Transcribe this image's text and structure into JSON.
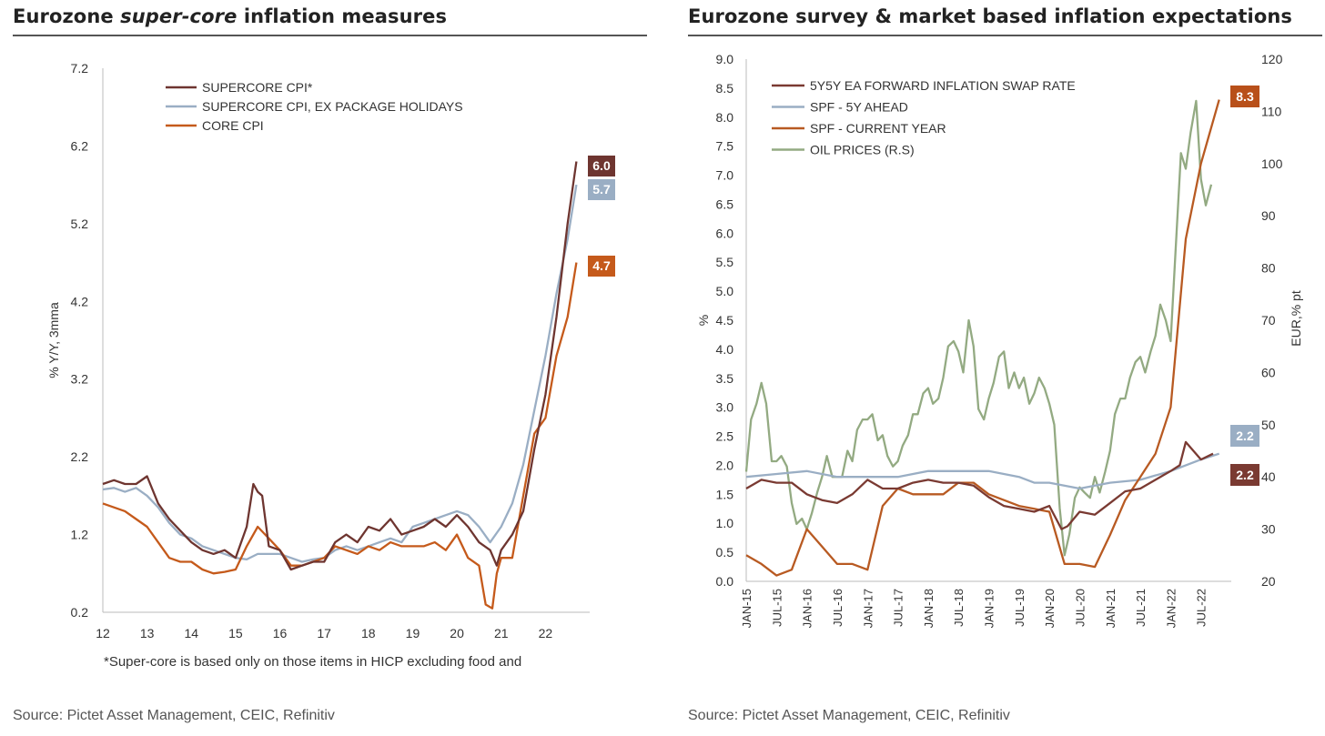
{
  "left": {
    "title_before": "Eurozone ",
    "title_italic": "super-core",
    "title_after": " inflation measures",
    "footnote": "*Super-core is based only on those items in HICP excluding food and",
    "source": "Source: Pictet Asset Management, CEIC, Refinitiv"
  },
  "right": {
    "title": "Eurozone survey & market based inflation expectations",
    "source": "Source: Pictet Asset Management, CEIC, Refinitiv"
  },
  "colors": {
    "supercore": "#6e3530",
    "supercore_ex": "#9aaec4",
    "core": "#c55a1b",
    "swap": "#7a3a32",
    "spf5y": "#9aaec4",
    "spf_cy": "#b85a22",
    "oil": "#93aa82"
  },
  "chart_data": [
    {
      "type": "line",
      "title": "Eurozone super-core inflation measures",
      "ylabel": "% Y/Y, 3mma",
      "ylim": [
        0.2,
        7.2
      ],
      "yticks": [
        "0.2",
        "1.2",
        "2.2",
        "3.2",
        "4.2",
        "5.2",
        "6.2",
        "7.2"
      ],
      "xlim": [
        2012.0,
        2023.0
      ],
      "xticks": [
        "12",
        "13",
        "14",
        "15",
        "16",
        "17",
        "18",
        "19",
        "20",
        "21",
        "22"
      ],
      "legend_position": "top-left",
      "series": [
        {
          "name": "SUPERCORE CPI*",
          "end_label": "6.0",
          "x": [
            2012.0,
            2012.25,
            2012.5,
            2012.75,
            2013.0,
            2013.25,
            2013.5,
            2013.75,
            2014.0,
            2014.25,
            2014.5,
            2014.75,
            2015.0,
            2015.25,
            2015.4,
            2015.5,
            2015.6,
            2015.75,
            2016.0,
            2016.25,
            2016.5,
            2016.75,
            2017.0,
            2017.25,
            2017.5,
            2017.75,
            2018.0,
            2018.25,
            2018.5,
            2018.75,
            2019.0,
            2019.25,
            2019.5,
            2019.75,
            2020.0,
            2020.25,
            2020.5,
            2020.75,
            2020.9,
            2021.0,
            2021.25,
            2021.5,
            2021.75,
            2022.0,
            2022.25,
            2022.5,
            2022.7
          ],
          "values": [
            1.85,
            1.9,
            1.85,
            1.85,
            1.95,
            1.6,
            1.4,
            1.25,
            1.1,
            1.0,
            0.95,
            1.0,
            0.9,
            1.3,
            1.85,
            1.75,
            1.7,
            1.05,
            1.0,
            0.75,
            0.8,
            0.85,
            0.85,
            1.1,
            1.2,
            1.1,
            1.3,
            1.25,
            1.4,
            1.2,
            1.25,
            1.3,
            1.4,
            1.3,
            1.45,
            1.3,
            1.1,
            1.0,
            0.8,
            1.0,
            1.2,
            1.5,
            2.3,
            3.0,
            4.0,
            5.2,
            6.0
          ]
        },
        {
          "name": "SUPERCORE CPI, EX PACKAGE HOLIDAYS",
          "end_label": "5.7",
          "x": [
            2012.0,
            2012.25,
            2012.5,
            2012.75,
            2013.0,
            2013.25,
            2013.5,
            2013.75,
            2014.0,
            2014.25,
            2014.5,
            2014.75,
            2015.0,
            2015.25,
            2015.5,
            2015.75,
            2016.0,
            2016.25,
            2016.5,
            2016.75,
            2017.0,
            2017.25,
            2017.5,
            2017.75,
            2018.0,
            2018.25,
            2018.5,
            2018.75,
            2019.0,
            2019.25,
            2019.5,
            2019.75,
            2020.0,
            2020.25,
            2020.5,
            2020.75,
            2021.0,
            2021.25,
            2021.5,
            2021.75,
            2022.0,
            2022.25,
            2022.5,
            2022.7
          ],
          "values": [
            1.78,
            1.8,
            1.75,
            1.8,
            1.7,
            1.55,
            1.35,
            1.2,
            1.15,
            1.05,
            1.0,
            0.95,
            0.9,
            0.88,
            0.95,
            0.95,
            0.95,
            0.9,
            0.85,
            0.88,
            0.9,
            1.0,
            1.05,
            1.0,
            1.05,
            1.1,
            1.15,
            1.1,
            1.3,
            1.35,
            1.4,
            1.45,
            1.5,
            1.45,
            1.3,
            1.1,
            1.3,
            1.6,
            2.1,
            2.8,
            3.5,
            4.3,
            5.0,
            5.7
          ]
        },
        {
          "name": "CORE CPI",
          "end_label": "4.7",
          "x": [
            2012.0,
            2012.25,
            2012.5,
            2012.75,
            2013.0,
            2013.25,
            2013.5,
            2013.75,
            2014.0,
            2014.25,
            2014.5,
            2014.75,
            2015.0,
            2015.25,
            2015.5,
            2015.75,
            2016.0,
            2016.25,
            2016.5,
            2016.75,
            2017.0,
            2017.25,
            2017.5,
            2017.75,
            2018.0,
            2018.25,
            2018.5,
            2018.75,
            2019.0,
            2019.25,
            2019.5,
            2019.75,
            2020.0,
            2020.25,
            2020.5,
            2020.65,
            2020.8,
            2020.9,
            2021.0,
            2021.25,
            2021.5,
            2021.75,
            2022.0,
            2022.25,
            2022.5,
            2022.7
          ],
          "values": [
            1.6,
            1.55,
            1.5,
            1.4,
            1.3,
            1.1,
            0.9,
            0.85,
            0.85,
            0.75,
            0.7,
            0.72,
            0.75,
            1.05,
            1.3,
            1.15,
            1.0,
            0.8,
            0.8,
            0.85,
            0.9,
            1.05,
            1.0,
            0.95,
            1.05,
            1.0,
            1.1,
            1.05,
            1.05,
            1.05,
            1.1,
            1.0,
            1.2,
            0.9,
            0.8,
            0.3,
            0.25,
            0.7,
            0.9,
            0.9,
            1.7,
            2.5,
            2.7,
            3.5,
            4.0,
            4.7
          ]
        }
      ]
    },
    {
      "type": "line",
      "title": "Eurozone survey & market based inflation expectations",
      "ylabel": "%",
      "ylim": [
        0.0,
        9.0
      ],
      "yticks": [
        "0.0",
        "0.5",
        "1.0",
        "1.5",
        "2.0",
        "2.5",
        "3.0",
        "3.5",
        "4.0",
        "4.5",
        "5.0",
        "5.5",
        "6.0",
        "6.5",
        "7.0",
        "7.5",
        "8.0",
        "8.5",
        "9.0"
      ],
      "y2label": "EUR,% pt",
      "y2lim": [
        20,
        120
      ],
      "y2ticks": [
        "20",
        "30",
        "40",
        "50",
        "60",
        "70",
        "80",
        "90",
        "100",
        "110",
        "120"
      ],
      "xlim": [
        2015.0,
        2023.0
      ],
      "xticks": [
        "JAN-15",
        "JUL-15",
        "JAN-16",
        "JUL-16",
        "JAN-17",
        "JUL-17",
        "JAN-18",
        "JUL-18",
        "JAN-19",
        "JUL-19",
        "JAN-20",
        "JUL-20",
        "JAN-21",
        "JUL-21",
        "JAN-22",
        "JUL-22"
      ],
      "legend_position": "top-left",
      "series": [
        {
          "name": "5Y5Y EA FORWARD INFLATION SWAP RATE",
          "end_label": "2.2",
          "axis": "left",
          "x": [
            2015.0,
            2015.25,
            2015.5,
            2015.75,
            2016.0,
            2016.25,
            2016.5,
            2016.75,
            2017.0,
            2017.25,
            2017.5,
            2017.75,
            2018.0,
            2018.25,
            2018.5,
            2018.75,
            2019.0,
            2019.25,
            2019.5,
            2019.75,
            2020.0,
            2020.2,
            2020.3,
            2020.5,
            2020.75,
            2021.0,
            2021.25,
            2021.5,
            2021.75,
            2022.0,
            2022.15,
            2022.25,
            2022.5,
            2022.7
          ],
          "values": [
            1.6,
            1.75,
            1.7,
            1.7,
            1.5,
            1.4,
            1.35,
            1.5,
            1.75,
            1.6,
            1.6,
            1.7,
            1.75,
            1.7,
            1.7,
            1.65,
            1.45,
            1.3,
            1.25,
            1.2,
            1.3,
            0.9,
            0.95,
            1.2,
            1.15,
            1.35,
            1.55,
            1.6,
            1.75,
            1.9,
            2.0,
            2.4,
            2.1,
            2.2
          ]
        },
        {
          "name": "SPF - 5Y AHEAD",
          "end_label": "2.2",
          "axis": "left",
          "x": [
            2015.0,
            2015.5,
            2016.0,
            2016.5,
            2017.0,
            2017.5,
            2018.0,
            2018.5,
            2019.0,
            2019.5,
            2019.75,
            2020.0,
            2020.5,
            2021.0,
            2021.5,
            2022.0,
            2022.5,
            2022.8
          ],
          "values": [
            1.8,
            1.85,
            1.9,
            1.8,
            1.8,
            1.8,
            1.9,
            1.9,
            1.9,
            1.8,
            1.7,
            1.7,
            1.6,
            1.7,
            1.75,
            1.9,
            2.1,
            2.2
          ]
        },
        {
          "name": "SPF - CURRENT YEAR",
          "end_label": "8.3",
          "axis": "left",
          "x": [
            2015.0,
            2015.25,
            2015.5,
            2015.75,
            2016.0,
            2016.25,
            2016.5,
            2016.75,
            2017.0,
            2017.25,
            2017.5,
            2017.75,
            2018.0,
            2018.25,
            2018.5,
            2018.75,
            2019.0,
            2019.25,
            2019.5,
            2019.75,
            2020.0,
            2020.25,
            2020.5,
            2020.75,
            2021.0,
            2021.25,
            2021.5,
            2021.75,
            2022.0,
            2022.25,
            2022.5,
            2022.8
          ],
          "values": [
            0.45,
            0.3,
            0.1,
            0.2,
            0.9,
            0.6,
            0.3,
            0.3,
            0.2,
            1.3,
            1.6,
            1.5,
            1.5,
            1.5,
            1.7,
            1.7,
            1.5,
            1.4,
            1.3,
            1.25,
            1.2,
            0.3,
            0.3,
            0.25,
            0.8,
            1.4,
            1.8,
            2.2,
            3.0,
            5.9,
            7.2,
            8.3
          ]
        },
        {
          "name": "OIL PRICES (R.S)",
          "axis": "right",
          "x": [
            2015.0,
            2015.08,
            2015.17,
            2015.25,
            2015.33,
            2015.42,
            2015.5,
            2015.58,
            2015.67,
            2015.75,
            2015.83,
            2015.92,
            2016.0,
            2016.08,
            2016.17,
            2016.25,
            2016.33,
            2016.42,
            2016.5,
            2016.58,
            2016.67,
            2016.75,
            2016.83,
            2016.92,
            2017.0,
            2017.08,
            2017.17,
            2017.25,
            2017.33,
            2017.42,
            2017.5,
            2017.58,
            2017.67,
            2017.75,
            2017.83,
            2017.92,
            2018.0,
            2018.08,
            2018.17,
            2018.25,
            2018.33,
            2018.42,
            2018.5,
            2018.58,
            2018.67,
            2018.75,
            2018.83,
            2018.92,
            2019.0,
            2019.08,
            2019.17,
            2019.25,
            2019.33,
            2019.42,
            2019.5,
            2019.58,
            2019.67,
            2019.75,
            2019.83,
            2019.92,
            2020.0,
            2020.08,
            2020.17,
            2020.25,
            2020.33,
            2020.42,
            2020.5,
            2020.58,
            2020.67,
            2020.75,
            2020.83,
            2020.92,
            2021.0,
            2021.08,
            2021.17,
            2021.25,
            2021.33,
            2021.42,
            2021.5,
            2021.58,
            2021.67,
            2021.75,
            2021.83,
            2021.92,
            2022.0,
            2022.08,
            2022.17,
            2022.25,
            2022.33,
            2022.42,
            2022.5,
            2022.58,
            2022.67
          ],
          "values": [
            41,
            51,
            54,
            58,
            54,
            43,
            43,
            44,
            42,
            35,
            31,
            32,
            30,
            33,
            37,
            40,
            44,
            40,
            40,
            40,
            45,
            43,
            49,
            51,
            51,
            52,
            47,
            48,
            44,
            42,
            43,
            46,
            48,
            52,
            52,
            56,
            57,
            54,
            55,
            59,
            65,
            66,
            64,
            60,
            70,
            65,
            53,
            51,
            55,
            58,
            63,
            64,
            57,
            60,
            57,
            59,
            54,
            56,
            59,
            57,
            54,
            50,
            34,
            25,
            29,
            36,
            38,
            37,
            36,
            40,
            37,
            41,
            45,
            52,
            55,
            55,
            59,
            62,
            63,
            60,
            64,
            67,
            73,
            70,
            66,
            83,
            102,
            99,
            106,
            112,
            97,
            92,
            96
          ]
        }
      ]
    }
  ]
}
